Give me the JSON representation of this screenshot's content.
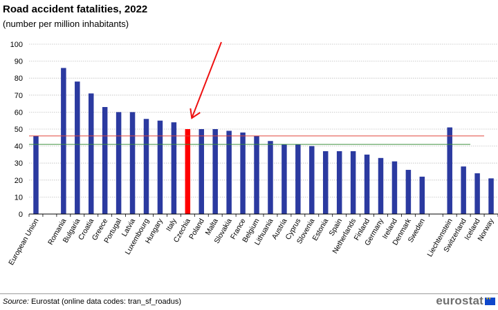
{
  "header": {
    "title": "Road accident fatalities, 2022",
    "subtitle": "(number  per million  inhabitants)"
  },
  "chart_data": {
    "type": "bar",
    "categories": [
      "European Union",
      "",
      "Romania",
      "Bulgaria",
      "Croatia",
      "Greece",
      "Portugal",
      "Latvia",
      "Luxembourg",
      "Hungary",
      "Italy",
      "Czechia",
      "Poland",
      "Malta",
      "Slovakia",
      "France",
      "Belgium",
      "Lithuania",
      "Austria",
      "Cyprus",
      "Slovenia",
      "Estonia",
      "Spain",
      "Netherlands",
      "Finland",
      "Germany",
      "Ireland",
      "Denmark",
      "Sweden",
      "",
      "Liechtenstein",
      "Switzerland",
      "Iceland",
      "Norway"
    ],
    "values": [
      46,
      null,
      86,
      78,
      71,
      63,
      60,
      60,
      56,
      55,
      54,
      50,
      50,
      50,
      49,
      48,
      46,
      43,
      41,
      41,
      40,
      37,
      37,
      37,
      35,
      33,
      31,
      26,
      22,
      null,
      51,
      28,
      24,
      21
    ],
    "highlight_category": "Czechia",
    "ylim": [
      0,
      100
    ],
    "yticks": [
      0,
      10,
      20,
      30,
      40,
      50,
      60,
      70,
      80,
      90,
      100
    ],
    "grid": true,
    "reference_lines": [
      {
        "value": 46,
        "color": "#e0453a"
      },
      {
        "value": 41,
        "color": "#3c8f3c"
      }
    ],
    "colors": {
      "bar": "#2b3aa0",
      "highlight": "#ff0000",
      "grid": "#bdbdbd",
      "arrow": "#ee1111"
    }
  },
  "footer": {
    "source_label": "Source:",
    "source_text": " Eurostat (online data codes: tran_sf_roadus)",
    "logo_text": "eurostat"
  }
}
